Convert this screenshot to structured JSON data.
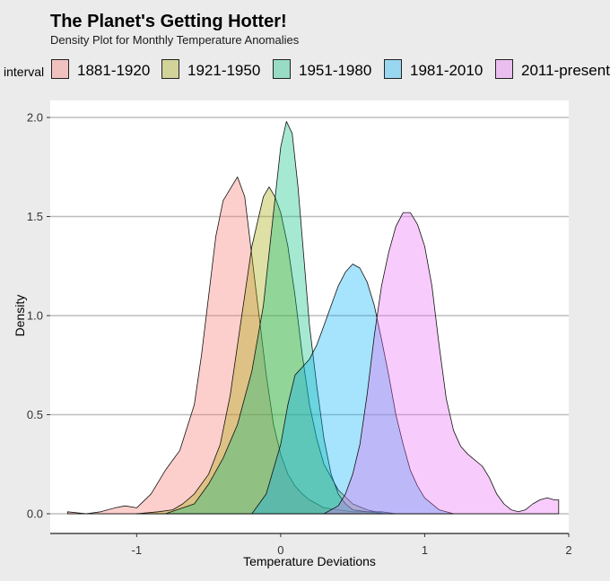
{
  "title": "The Planet's Getting Hotter!",
  "subtitle": "Density Plot for Monthly Temperature Anomalies",
  "legend": {
    "title": "interval",
    "items": [
      {
        "label": "1881-1920",
        "color": "#F8766D"
      },
      {
        "label": "1921-1950",
        "color": "#A3A500"
      },
      {
        "label": "1951-1980",
        "color": "#00BF7D"
      },
      {
        "label": "1981-2010",
        "color": "#00B0F6"
      },
      {
        "label": "2011-present",
        "color": "#E76BF3"
      }
    ]
  },
  "chart_data": {
    "type": "area",
    "title": "The Planet's Getting Hotter!",
    "subtitle": "Density Plot for Monthly Temperature Anomalies",
    "xlabel": "Temperature Deviations",
    "ylabel": "Density",
    "xlim": [
      -1.6,
      2.0
    ],
    "ylim": [
      0,
      2.0
    ],
    "xticks": [
      -1,
      0,
      1,
      2
    ],
    "xtick_labels": [
      "-1",
      "0",
      "1",
      "2"
    ],
    "yticks": [
      0.0,
      0.5,
      1.0,
      1.5,
      2.0
    ],
    "ytick_labels": [
      "0.0",
      "0.5",
      "1.0",
      "1.5",
      "2.0"
    ],
    "grid": "horizontal",
    "legend_position": "top",
    "fill_opacity": 0.35,
    "series": [
      {
        "name": "1881-1920",
        "color": "#F8766D",
        "x": [
          -1.48,
          -1.35,
          -1.25,
          -1.15,
          -1.08,
          -1.0,
          -0.9,
          -0.8,
          -0.7,
          -0.6,
          -0.55,
          -0.5,
          -0.45,
          -0.4,
          -0.35,
          -0.3,
          -0.25,
          -0.2,
          -0.15,
          -0.1,
          -0.05,
          0.0,
          0.05,
          0.1,
          0.15,
          0.2,
          0.3,
          0.4,
          0.5,
          0.6,
          0.72
        ],
        "y": [
          0.01,
          0.0,
          0.01,
          0.03,
          0.04,
          0.03,
          0.1,
          0.22,
          0.32,
          0.55,
          0.8,
          1.1,
          1.4,
          1.58,
          1.64,
          1.7,
          1.6,
          1.3,
          1.0,
          0.7,
          0.45,
          0.3,
          0.2,
          0.14,
          0.1,
          0.07,
          0.03,
          0.02,
          0.01,
          0.01,
          0.0
        ]
      },
      {
        "name": "1921-1950",
        "color": "#A3A500",
        "x": [
          -1.0,
          -0.85,
          -0.75,
          -0.68,
          -0.6,
          -0.5,
          -0.42,
          -0.35,
          -0.28,
          -0.2,
          -0.12,
          -0.08,
          -0.04,
          0.0,
          0.05,
          0.1,
          0.15,
          0.2,
          0.25,
          0.3,
          0.4,
          0.5,
          0.6,
          0.72
        ],
        "y": [
          0.0,
          0.01,
          0.02,
          0.05,
          0.1,
          0.2,
          0.35,
          0.6,
          0.95,
          1.35,
          1.6,
          1.65,
          1.6,
          1.52,
          1.35,
          1.1,
          0.8,
          0.55,
          0.38,
          0.25,
          0.12,
          0.05,
          0.02,
          0.0
        ]
      },
      {
        "name": "1951-1980",
        "color": "#00BF7D",
        "x": [
          -0.8,
          -0.6,
          -0.5,
          -0.4,
          -0.3,
          -0.2,
          -0.12,
          -0.05,
          0.0,
          0.04,
          0.08,
          0.12,
          0.16,
          0.2,
          0.25,
          0.3,
          0.35,
          0.4,
          0.45,
          0.5,
          0.6,
          0.7,
          0.8
        ],
        "y": [
          0.0,
          0.05,
          0.15,
          0.28,
          0.45,
          0.72,
          1.05,
          1.52,
          1.85,
          1.98,
          1.92,
          1.65,
          1.3,
          0.95,
          0.65,
          0.38,
          0.2,
          0.1,
          0.05,
          0.02,
          0.01,
          0.01,
          0.0
        ]
      },
      {
        "name": "1981-2010",
        "color": "#00B0F6",
        "x": [
          -0.2,
          -0.1,
          0.0,
          0.05,
          0.1,
          0.15,
          0.2,
          0.25,
          0.3,
          0.35,
          0.4,
          0.45,
          0.5,
          0.55,
          0.6,
          0.65,
          0.7,
          0.75,
          0.8,
          0.85,
          0.9,
          0.95,
          1.0,
          1.1,
          1.2
        ],
        "y": [
          0.0,
          0.1,
          0.35,
          0.55,
          0.7,
          0.74,
          0.78,
          0.85,
          0.95,
          1.05,
          1.15,
          1.22,
          1.26,
          1.24,
          1.17,
          1.05,
          0.88,
          0.7,
          0.5,
          0.35,
          0.22,
          0.14,
          0.08,
          0.02,
          0.0
        ]
      },
      {
        "name": "2011-present",
        "color": "#E76BF3",
        "x": [
          0.3,
          0.4,
          0.45,
          0.5,
          0.55,
          0.6,
          0.65,
          0.7,
          0.75,
          0.8,
          0.85,
          0.9,
          0.95,
          1.0,
          1.05,
          1.1,
          1.15,
          1.2,
          1.25,
          1.3,
          1.35,
          1.4,
          1.45,
          1.5,
          1.55,
          1.6,
          1.65,
          1.7,
          1.75,
          1.8,
          1.85,
          1.9,
          1.93
        ],
        "y": [
          0.0,
          0.04,
          0.1,
          0.2,
          0.35,
          0.6,
          0.9,
          1.15,
          1.32,
          1.45,
          1.52,
          1.52,
          1.46,
          1.35,
          1.15,
          0.85,
          0.58,
          0.42,
          0.34,
          0.3,
          0.27,
          0.24,
          0.18,
          0.1,
          0.05,
          0.02,
          0.01,
          0.02,
          0.05,
          0.07,
          0.08,
          0.07,
          0.07
        ]
      }
    ]
  }
}
